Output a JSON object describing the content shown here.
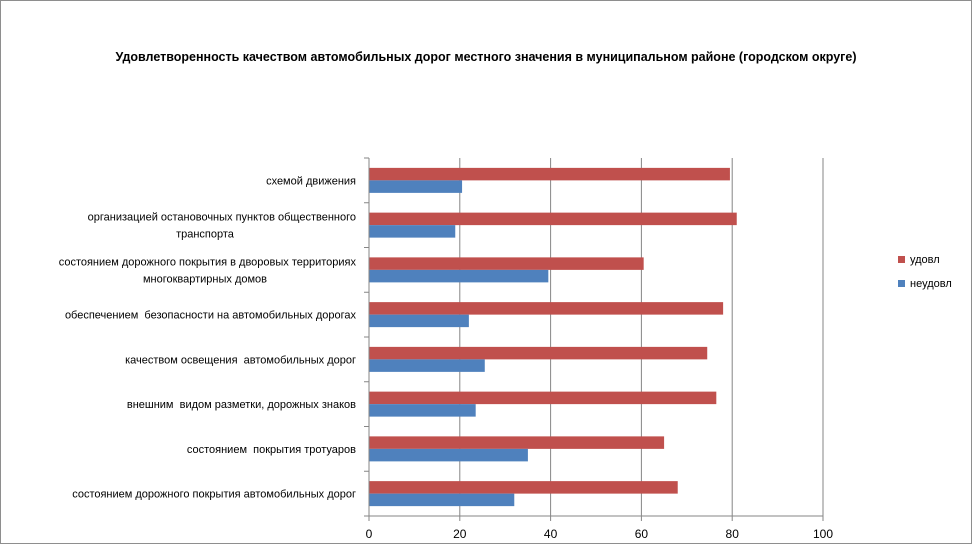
{
  "chart_data": {
    "type": "bar",
    "orientation": "horizontal",
    "title": "Удовлетворенность качеством автомобильных дорог местного значения в муниципальном районе (городском округе)",
    "categories": [
      [
        "схемой движения"
      ],
      [
        "организацией остановочных пунктов общественного",
        "транспорта"
      ],
      [
        "состоянием дорожного покрытия в дворовых территориях",
        "многоквартирных домов"
      ],
      [
        "обеспечением  безопасности на автомобильных дорогах"
      ],
      [
        "качеством освещения  автомобильных дорог"
      ],
      [
        "внешним  видом разметки, дорожных знаков"
      ],
      [
        "состоянием  покрытия тротуаров"
      ],
      [
        "состоянием дорожного покрытия автомобильных дорог"
      ]
    ],
    "series": [
      {
        "name": "удовл",
        "color": "#c0504d",
        "values": [
          79.5,
          81,
          60.5,
          78,
          74.5,
          76.5,
          65,
          68
        ]
      },
      {
        "name": "неудовл",
        "color": "#4f81bd",
        "values": [
          20.5,
          19,
          39.5,
          22,
          25.5,
          23.5,
          35,
          32
        ]
      }
    ],
    "xlim": [
      0,
      100
    ],
    "xticks": [
      "0",
      "20",
      "40",
      "60",
      "80",
      "100"
    ],
    "grid": true,
    "legend": "right"
  }
}
